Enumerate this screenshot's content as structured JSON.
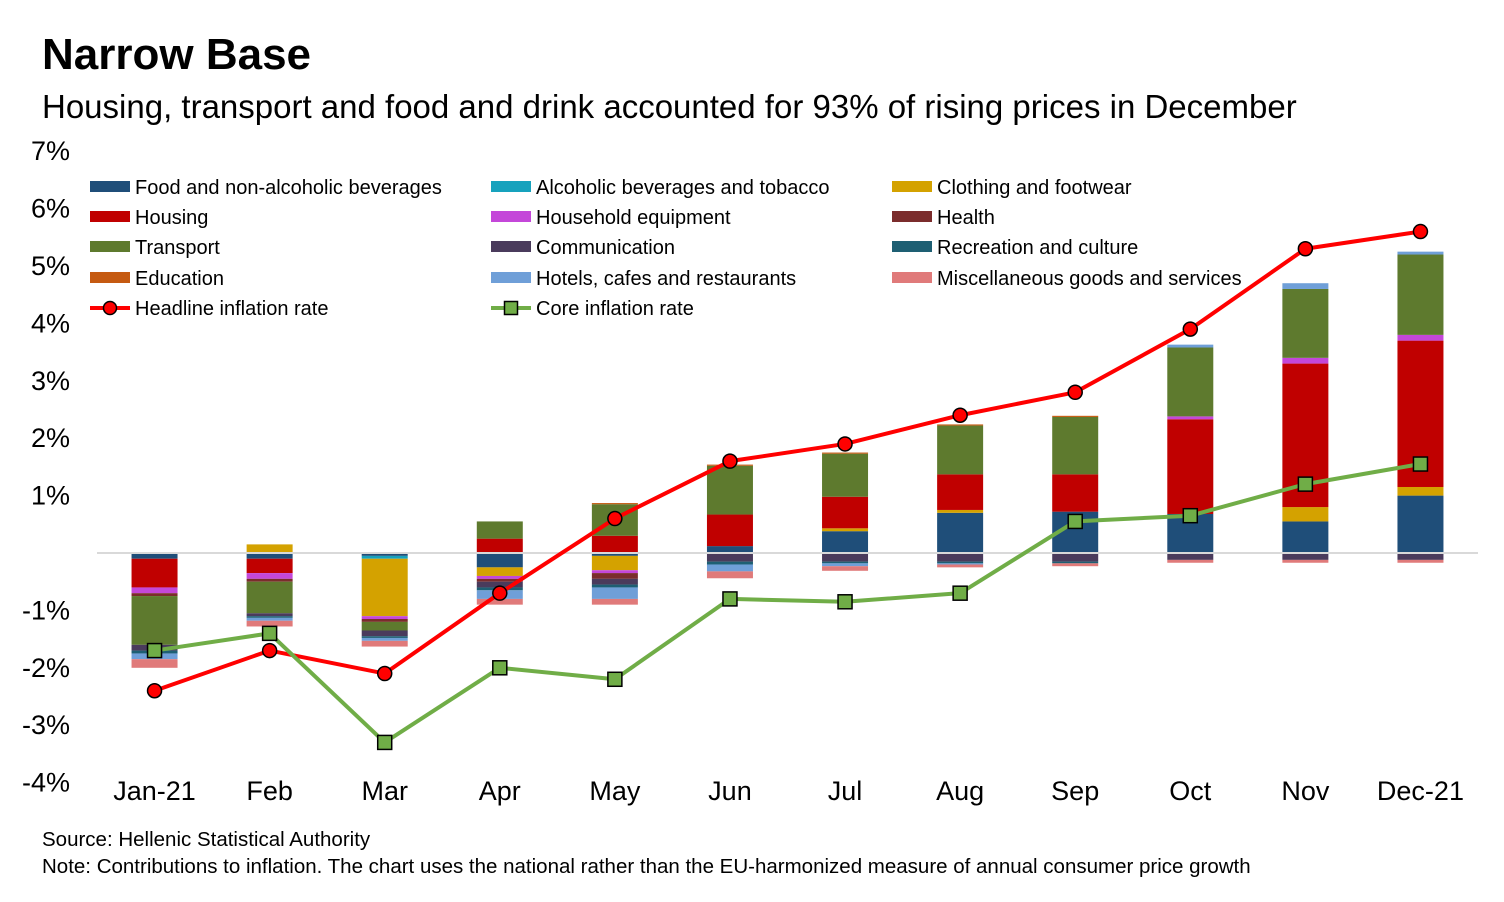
{
  "title": "Narrow Base",
  "subtitle": "Housing, transport and food and drink accounted for 93% of rising prices in December",
  "source": "Source: Hellenic Statistical Authority",
  "note": "Note: Contributions to inflation. The chart uses the national rather than the EU-harmonized measure of annual consumer price growth",
  "chart_data": {
    "type": "bar",
    "stacked": true,
    "categories": [
      "Jan-21",
      "Feb",
      "Mar",
      "Apr",
      "May",
      "Jun",
      "Jul",
      "Aug",
      "Sep",
      "Oct",
      "Nov",
      "Dec-21"
    ],
    "ylim": [
      -4,
      7
    ],
    "yticks": [
      -4,
      -3,
      -2,
      -1,
      1,
      2,
      3,
      4,
      5,
      6,
      7
    ],
    "ytick_labels": [
      "-4%",
      "-3%",
      "-2%",
      "-1%",
      "1%",
      "2%",
      "3%",
      "4%",
      "5%",
      "6%",
      "7%"
    ],
    "grid": false,
    "legend_position": "top",
    "series": [
      {
        "name": "Food and non-alcoholic beverages",
        "color": "#1f4e79",
        "values": [
          -0.1,
          -0.1,
          -0.05,
          -0.25,
          -0.05,
          0.12,
          0.38,
          0.7,
          0.72,
          0.68,
          0.55,
          1.0
        ]
      },
      {
        "name": "Alcoholic beverages and tobacco",
        "color": "#17a2bd",
        "values": [
          0.0,
          0.0,
          -0.05,
          0.0,
          0.0,
          0.0,
          0.0,
          0.0,
          0.0,
          0.0,
          0.0,
          0.0
        ]
      },
      {
        "name": "Clothing and footwear",
        "color": "#d4a200",
        "values": [
          0.0,
          0.15,
          -1.0,
          -0.15,
          -0.25,
          0.0,
          0.05,
          0.05,
          0.0,
          0.0,
          0.25,
          0.15
        ]
      },
      {
        "name": "Housing",
        "color": "#c00000",
        "values": [
          -0.5,
          -0.25,
          0.0,
          0.25,
          0.3,
          0.55,
          0.55,
          0.62,
          0.65,
          1.65,
          2.5,
          2.55
        ]
      },
      {
        "name": "Household equipment",
        "color": "#c447d9",
        "values": [
          -0.1,
          -0.1,
          -0.05,
          -0.05,
          -0.05,
          0.0,
          0.0,
          0.0,
          0.0,
          0.05,
          0.1,
          0.1
        ]
      },
      {
        "name": "Health",
        "color": "#7b2c2c",
        "values": [
          -0.05,
          -0.05,
          -0.05,
          -0.05,
          -0.1,
          0.0,
          0.0,
          0.0,
          0.0,
          0.0,
          0.0,
          0.0
        ]
      },
      {
        "name": "Transport",
        "color": "#5e7a2e",
        "values": [
          -0.85,
          -0.55,
          -0.15,
          0.3,
          0.55,
          0.85,
          0.75,
          0.85,
          1.0,
          1.2,
          1.2,
          1.4
        ]
      },
      {
        "name": "Communication",
        "color": "#4a3b5c",
        "values": [
          -0.1,
          -0.05,
          -0.1,
          -0.1,
          -0.1,
          -0.15,
          -0.15,
          -0.15,
          -0.15,
          -0.12,
          -0.12,
          -0.12
        ]
      },
      {
        "name": "Recreation and culture",
        "color": "#1e5f73",
        "values": [
          -0.05,
          -0.03,
          -0.03,
          -0.05,
          -0.05,
          -0.05,
          -0.03,
          -0.03,
          -0.03,
          0.0,
          0.0,
          0.0
        ]
      },
      {
        "name": "Education",
        "color": "#c55a11",
        "values": [
          0.0,
          0.0,
          0.0,
          0.0,
          0.02,
          0.02,
          0.02,
          0.02,
          0.02,
          0.0,
          0.0,
          0.0
        ]
      },
      {
        "name": "Hotels, cafes and restaurants",
        "color": "#6f9fd8",
        "values": [
          -0.1,
          -0.05,
          -0.05,
          -0.15,
          -0.2,
          -0.12,
          -0.05,
          -0.02,
          0.0,
          0.05,
          0.1,
          0.05
        ]
      },
      {
        "name": "Miscellaneous goods and services",
        "color": "#e07a7a",
        "values": [
          -0.15,
          -0.1,
          -0.1,
          -0.1,
          -0.1,
          -0.12,
          -0.08,
          -0.05,
          -0.05,
          -0.05,
          -0.05,
          -0.05
        ]
      }
    ],
    "lines": [
      {
        "name": "Headline inflation rate",
        "color": "#ff0000",
        "marker": "circle",
        "marker_fill": "#ff0000",
        "values": [
          -2.4,
          -1.7,
          -2.1,
          -0.7,
          0.6,
          1.6,
          1.9,
          2.4,
          2.8,
          3.9,
          5.3,
          5.6
        ]
      },
      {
        "name": "Core inflation rate",
        "color": "#70ad47",
        "marker": "square",
        "marker_fill": "#70ad47",
        "values": [
          -1.7,
          -1.4,
          -3.3,
          -2.0,
          -2.2,
          -0.8,
          -0.85,
          -0.7,
          0.55,
          0.65,
          1.2,
          1.55
        ]
      }
    ]
  }
}
